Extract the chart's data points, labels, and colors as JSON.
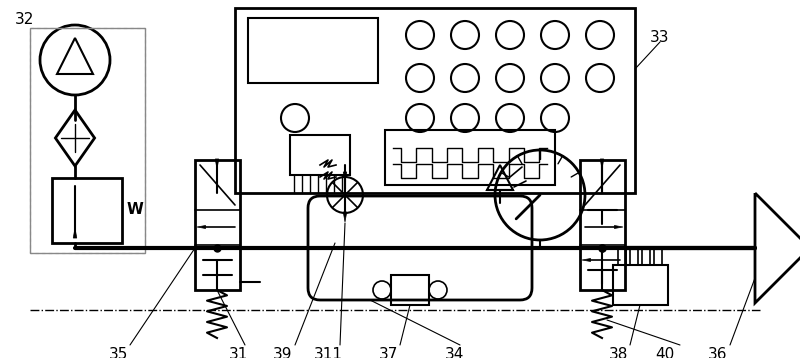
{
  "bg_color": "#ffffff",
  "line_color": "#000000",
  "figsize": [
    8.0,
    3.58
  ],
  "dpi": 100
}
